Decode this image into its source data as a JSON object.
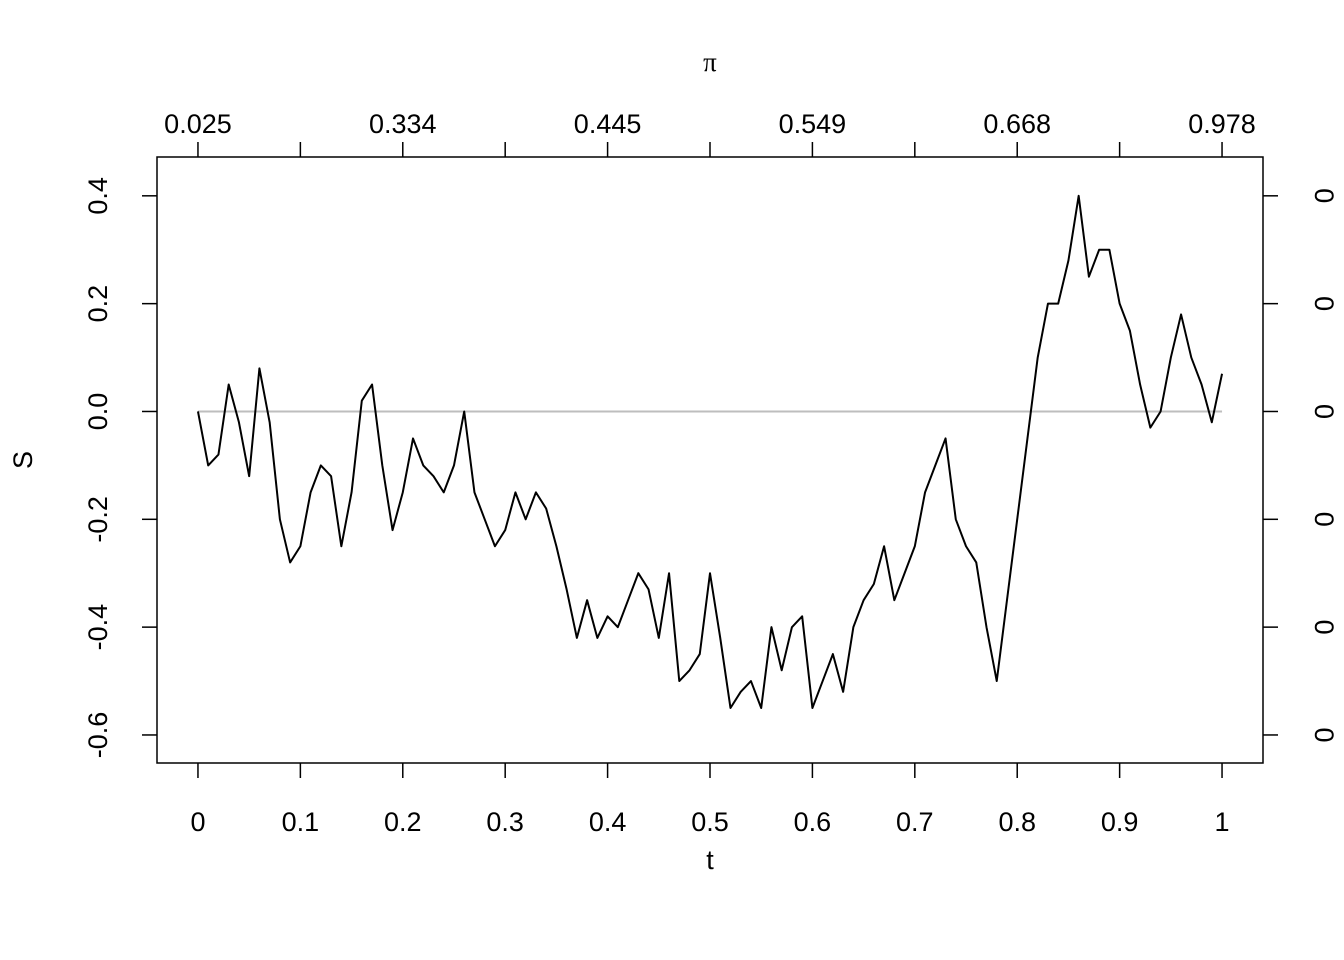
{
  "chart_data": {
    "type": "line",
    "xlabel": "t",
    "ylabel": "S",
    "x2label": "π",
    "x": [
      0,
      0.01,
      0.02,
      0.03,
      0.04,
      0.05,
      0.06,
      0.07,
      0.08,
      0.09,
      0.1,
      0.11,
      0.12,
      0.13,
      0.14,
      0.15,
      0.16,
      0.17,
      0.18,
      0.19,
      0.2,
      0.21,
      0.22,
      0.23,
      0.24,
      0.25,
      0.26,
      0.27,
      0.28,
      0.29,
      0.3,
      0.31,
      0.32,
      0.33,
      0.34,
      0.35,
      0.36,
      0.37,
      0.38,
      0.39,
      0.4,
      0.41,
      0.42,
      0.43,
      0.44,
      0.45,
      0.46,
      0.47,
      0.48,
      0.49,
      0.5,
      0.51,
      0.52,
      0.53,
      0.54,
      0.55,
      0.56,
      0.57,
      0.58,
      0.59,
      0.6,
      0.61,
      0.62,
      0.63,
      0.64,
      0.65,
      0.66,
      0.67,
      0.68,
      0.69,
      0.7,
      0.71,
      0.72,
      0.73,
      0.74,
      0.75,
      0.76,
      0.77,
      0.78,
      0.79,
      0.8,
      0.81,
      0.82,
      0.83,
      0.84,
      0.85,
      0.86,
      0.87,
      0.88,
      0.89,
      0.9,
      0.91,
      0.92,
      0.93,
      0.94,
      0.95,
      0.96,
      0.97,
      0.98,
      0.99,
      1
    ],
    "values": [
      0,
      -0.1,
      -0.08,
      0.05,
      -0.02,
      -0.12,
      0.08,
      -0.02,
      -0.2,
      -0.28,
      -0.25,
      -0.15,
      -0.1,
      -0.12,
      -0.25,
      -0.15,
      0.02,
      0.05,
      -0.1,
      -0.22,
      -0.15,
      -0.05,
      -0.1,
      -0.12,
      -0.15,
      -0.1,
      0,
      -0.15,
      -0.2,
      -0.25,
      -0.22,
      -0.15,
      -0.2,
      -0.15,
      -0.18,
      -0.25,
      -0.33,
      -0.42,
      -0.35,
      -0.42,
      -0.38,
      -0.4,
      -0.35,
      -0.3,
      -0.33,
      -0.42,
      -0.3,
      -0.5,
      -0.48,
      -0.45,
      -0.3,
      -0.42,
      -0.55,
      -0.52,
      -0.5,
      -0.55,
      -0.4,
      -0.48,
      -0.4,
      -0.38,
      -0.55,
      -0.5,
      -0.45,
      -0.52,
      -0.4,
      -0.35,
      -0.32,
      -0.25,
      -0.35,
      -0.3,
      -0.25,
      -0.15,
      -0.1,
      -0.05,
      -0.2,
      -0.25,
      -0.28,
      -0.4,
      -0.5,
      -0.35,
      -0.2,
      -0.05,
      0.1,
      0.2,
      0.2,
      0.28,
      0.4,
      0.25,
      0.3,
      0.3,
      0.2,
      0.15,
      0.05,
      -0.03,
      0,
      0.1,
      0.18,
      0.1,
      0.05,
      -0.02,
      0.07
    ],
    "color": "#000000",
    "hline": 0,
    "hline_color": "#bebebe",
    "xlim": [
      -0.04,
      1.04
    ],
    "ylim": [
      -0.652,
      0.472
    ],
    "y2lim": [
      -0.652,
      0.472
    ],
    "xticks": [
      0,
      0.1,
      0.2,
      0.3,
      0.4,
      0.5,
      0.6,
      0.7,
      0.8,
      0.9,
      1
    ],
    "yticks": [
      -0.6,
      -0.4,
      -0.2,
      {
        "value": 0,
        "label": "0.0"
      },
      0.2,
      0.4
    ],
    "x2ticks": [
      0,
      0.1,
      0.2,
      0.3,
      0.4,
      0.5,
      0.6,
      0.7,
      0.8,
      0.9,
      1
    ],
    "x2tick_labels": [
      {
        "value": 0,
        "label": "0.025"
      },
      {
        "value": 0.2,
        "label": "0.334"
      },
      {
        "value": 0.4,
        "label": "0.445"
      },
      {
        "value": 0.6,
        "label": "0.549"
      },
      {
        "value": 0.8,
        "label": "0.668"
      },
      {
        "value": 1,
        "label": "0.978"
      }
    ],
    "y2ticks": [
      {
        "value": -0.6,
        "label": "0"
      },
      {
        "value": -0.4,
        "label": "0"
      },
      {
        "value": -0.2,
        "label": "0"
      },
      {
        "value": 0,
        "label": "0"
      },
      {
        "value": 0.2,
        "label": "0"
      },
      {
        "value": 0.4,
        "label": "0"
      }
    ]
  }
}
